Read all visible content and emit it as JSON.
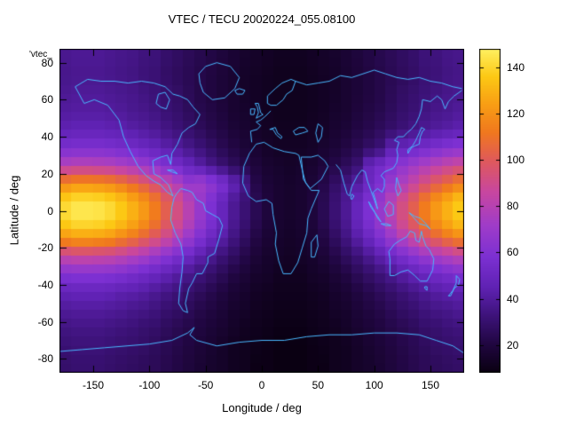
{
  "chart_data": {
    "type": "heatmap",
    "title": "VTEC / TECU 20020224_055.08100",
    "key_label": "'vtec_",
    "xlabel": "Longitude / deg",
    "ylabel": "Latitude / deg",
    "units": "TECU",
    "x_range": [
      -180,
      180
    ],
    "y_range": [
      -87.5,
      87.5
    ],
    "x_ticks": [
      -150,
      -100,
      -50,
      0,
      50,
      100,
      150
    ],
    "y_ticks": [
      -80,
      -60,
      -40,
      -20,
      0,
      20,
      40,
      60,
      80
    ],
    "colorbar": {
      "min": 8,
      "max": 148,
      "ticks": [
        20,
        40,
        60,
        80,
        100,
        120,
        140
      ],
      "stops": [
        [
          8,
          "#0a0012"
        ],
        [
          20,
          "#200640"
        ],
        [
          32,
          "#3c1278"
        ],
        [
          45,
          "#6022b4"
        ],
        [
          58,
          "#7c30d2"
        ],
        [
          72,
          "#a03cc8"
        ],
        [
          86,
          "#c846a0"
        ],
        [
          100,
          "#e05a5a"
        ],
        [
          112,
          "#f0781e"
        ],
        [
          124,
          "#f89e14"
        ],
        [
          136,
          "#fcc814"
        ],
        [
          148,
          "#fff060"
        ]
      ]
    },
    "coastline_color": "#49b8ff",
    "lon": [
      -175,
      -165,
      -155,
      -145,
      -135,
      -125,
      -115,
      -105,
      -95,
      -85,
      -75,
      -65,
      -55,
      -45,
      -35,
      -25,
      -15,
      -5,
      5,
      15,
      25,
      35,
      45,
      55,
      65,
      75,
      85,
      95,
      105,
      115,
      125,
      135,
      145,
      155,
      165,
      175
    ],
    "lat": [
      85,
      75,
      65,
      55,
      45,
      35,
      25,
      15,
      5,
      -5,
      -15,
      -25,
      -35,
      -45,
      -55,
      -65,
      -75,
      -85
    ],
    "values": [
      [
        37,
        38,
        38,
        38,
        37,
        36,
        35,
        33,
        32,
        29,
        27,
        25,
        23,
        21,
        19,
        17,
        15,
        14,
        13,
        12,
        12,
        12,
        13,
        14,
        15,
        17,
        19,
        21,
        23,
        25,
        27,
        29,
        32,
        33,
        35,
        36
      ],
      [
        36,
        37,
        37,
        37,
        36,
        35,
        34,
        32,
        31,
        28,
        26,
        24,
        22,
        20,
        18,
        16,
        14,
        13,
        12,
        11,
        11,
        11,
        12,
        13,
        14,
        16,
        18,
        20,
        22,
        24,
        26,
        28,
        31,
        32,
        34,
        35
      ],
      [
        38,
        39,
        39,
        39,
        38,
        37,
        36,
        34,
        32,
        30,
        28,
        25,
        22,
        20,
        18,
        16,
        14,
        13,
        12,
        11,
        11,
        11,
        12,
        13,
        14,
        16,
        18,
        20,
        22,
        25,
        28,
        30,
        32,
        34,
        36,
        37
      ],
      [
        40,
        41,
        41,
        41,
        40,
        39,
        37,
        36,
        34,
        31,
        29,
        26,
        23,
        21,
        19,
        16,
        15,
        13,
        12,
        11,
        11,
        11,
        12,
        13,
        15,
        16,
        19,
        21,
        23,
        26,
        29,
        31,
        34,
        36,
        37,
        39
      ],
      [
        45,
        46,
        46,
        46,
        45,
        44,
        42,
        40,
        38,
        35,
        32,
        29,
        26,
        23,
        21,
        18,
        16,
        14,
        13,
        12,
        12,
        12,
        13,
        14,
        16,
        18,
        21,
        23,
        26,
        29,
        32,
        35,
        38,
        40,
        42,
        44
      ],
      [
        57,
        58,
        58,
        58,
        57,
        55,
        53,
        50,
        47,
        43,
        40,
        36,
        32,
        28,
        24,
        21,
        18,
        16,
        14,
        13,
        13,
        13,
        14,
        16,
        18,
        21,
        24,
        28,
        32,
        44,
        48,
        51,
        55,
        58,
        61,
        63
      ],
      [
        80,
        82,
        82,
        81,
        80,
        77,
        74,
        70,
        65,
        60,
        54,
        48,
        42,
        36,
        31,
        26,
        22,
        19,
        16,
        15,
        14,
        15,
        16,
        19,
        22,
        26,
        31,
        48,
        54,
        60,
        66,
        72,
        77,
        82,
        86,
        89
      ],
      [
        117,
        120,
        120,
        119,
        117,
        113,
        107,
        101,
        94,
        85,
        77,
        68,
        72,
        66,
        58,
        46,
        36,
        22,
        18,
        16,
        15,
        16,
        18,
        22,
        28,
        34,
        41,
        50,
        58,
        68,
        77,
        85,
        94,
        101,
        107,
        113
      ],
      [
        141,
        145,
        145,
        144,
        141,
        136,
        129,
        122,
        113,
        102,
        92,
        80,
        68,
        58,
        48,
        38,
        31,
        24,
        19,
        16,
        15,
        16,
        19,
        24,
        31,
        38,
        48,
        58,
        68,
        80,
        92,
        102,
        113,
        122,
        129,
        136
      ],
      [
        141,
        145,
        145,
        144,
        141,
        136,
        129,
        122,
        113,
        102,
        92,
        80,
        68,
        58,
        48,
        38,
        31,
        24,
        19,
        16,
        15,
        16,
        19,
        24,
        31,
        38,
        48,
        58,
        68,
        80,
        92,
        102,
        113,
        122,
        129,
        136
      ],
      [
        121,
        124,
        124,
        123,
        121,
        116,
        111,
        104,
        97,
        88,
        79,
        69,
        59,
        50,
        42,
        34,
        27,
        21,
        17,
        15,
        14,
        15,
        17,
        21,
        27,
        34,
        42,
        50,
        59,
        69,
        79,
        88,
        97,
        104,
        111,
        116
      ],
      [
        86,
        88,
        88,
        87,
        86,
        83,
        79,
        75,
        69,
        63,
        57,
        51,
        44,
        38,
        32,
        27,
        22,
        18,
        15,
        14,
        13,
        14,
        15,
        18,
        22,
        27,
        32,
        38,
        44,
        51,
        57,
        63,
        69,
        75,
        79,
        83
      ],
      [
        61,
        62,
        62,
        62,
        61,
        59,
        56,
        53,
        50,
        46,
        42,
        37,
        33,
        29,
        25,
        21,
        18,
        15,
        14,
        12,
        12,
        12,
        14,
        15,
        18,
        21,
        25,
        29,
        33,
        37,
        42,
        46,
        50,
        53,
        56,
        59
      ],
      [
        46,
        47,
        47,
        47,
        46,
        44,
        43,
        41,
        38,
        35,
        32,
        29,
        26,
        23,
        20,
        17,
        15,
        13,
        12,
        11,
        11,
        11,
        12,
        13,
        15,
        17,
        20,
        23,
        26,
        29,
        32,
        35,
        38,
        41,
        43,
        44
      ],
      [
        39,
        40,
        40,
        40,
        39,
        38,
        36,
        35,
        33,
        30,
        28,
        25,
        22,
        20,
        18,
        15,
        14,
        12,
        11,
        10,
        10,
        10,
        11,
        12,
        14,
        15,
        18,
        20,
        22,
        25,
        28,
        30,
        33,
        35,
        36,
        38
      ],
      [
        34,
        35,
        35,
        35,
        34,
        33,
        32,
        30,
        29,
        26,
        24,
        22,
        20,
        18,
        16,
        14,
        12,
        11,
        10,
        9,
        9,
        9,
        10,
        11,
        12,
        14,
        16,
        18,
        20,
        22,
        24,
        26,
        29,
        30,
        32,
        33
      ],
      [
        31,
        32,
        32,
        32,
        31,
        30,
        29,
        28,
        26,
        24,
        22,
        20,
        18,
        16,
        14,
        12,
        11,
        10,
        9,
        8,
        8,
        8,
        9,
        10,
        11,
        12,
        14,
        16,
        18,
        20,
        22,
        24,
        26,
        28,
        29,
        30
      ],
      [
        29,
        30,
        30,
        30,
        29,
        28,
        27,
        26,
        25,
        23,
        21,
        19,
        17,
        15,
        14,
        12,
        11,
        9,
        9,
        8,
        8,
        8,
        9,
        9,
        11,
        12,
        14,
        15,
        17,
        19,
        21,
        23,
        25,
        26,
        27,
        28
      ]
    ]
  }
}
